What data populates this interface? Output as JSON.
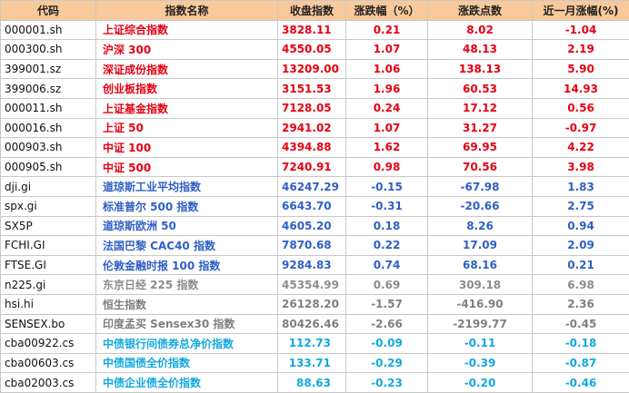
{
  "table": {
    "header": [
      "代码",
      "指数名称",
      "收盘指数",
      "涨跌幅（%）",
      "涨跌点数",
      "近一月涨幅(%)"
    ],
    "rows": [
      [
        "000001.sh",
        "上证综合指数",
        "3828.11",
        "0.21",
        "8.02",
        "-1.04"
      ],
      [
        "000300.sh",
        "沪深 300",
        "4550.05",
        "1.07",
        "48.13",
        "2.19"
      ],
      [
        "399001.sz",
        "深证成份指数",
        "13209.00",
        "1.06",
        "138.13",
        "5.90"
      ],
      [
        "399006.sz",
        "创业板指数",
        "3151.53",
        "1.96",
        "60.53",
        "14.93"
      ],
      [
        "000011.sh",
        "上证基金指数",
        "7128.05",
        "0.24",
        "17.12",
        "0.56"
      ],
      [
        "000016.sh",
        "上证 50",
        "2941.02",
        "1.07",
        "31.27",
        "-0.97"
      ],
      [
        "000903.sh",
        "中证 100",
        "4394.88",
        "1.62",
        "69.95",
        "4.22"
      ],
      [
        "000905.sh",
        "中证 500",
        "7240.91",
        "0.98",
        "70.56",
        "3.98"
      ],
      [
        "dji.gi",
        "道琼斯工业平均指数",
        "46247.29",
        "-0.15",
        "-67.98",
        "1.83"
      ],
      [
        "spx.gi",
        "标准普尔 500 指数",
        "6643.70",
        "-0.31",
        "-20.66",
        "2.75"
      ],
      [
        "SX5P",
        "道琼斯欧洲 50",
        "4605.20",
        "0.18",
        "8.26",
        "0.94"
      ],
      [
        "FCHI.GI",
        "法国巴黎 CAC40 指数",
        "7870.68",
        "0.22",
        "17.09",
        "2.09"
      ],
      [
        "FTSE.GI",
        "伦敦金融时报 100 指数",
        "9284.83",
        "0.74",
        "68.16",
        "0.21"
      ],
      [
        "n225.gi",
        "东京日经 225 指数",
        "45354.99",
        "0.69",
        "309.18",
        "6.98"
      ],
      [
        "hsi.hi",
        "恒生指数",
        "26128.20",
        "-1.57",
        "-416.90",
        "2.36"
      ],
      [
        "SENSEX.bo",
        "印度孟买 Sensex30 指数",
        "80426.46",
        "-2.66",
        "-2199.77",
        "-0.45"
      ],
      [
        "cba00922.cs",
        "中债银行间债券总净价指数",
        "112.73",
        "-0.09",
        "-0.11",
        "-0.18"
      ],
      [
        "cba00603.cs",
        "中债国债全价指数",
        "133.71",
        "-0.29",
        "-0.39",
        "-0.87"
      ],
      [
        "cba02003.cs",
        "中债企业债全价指数",
        "88.63",
        "-0.23",
        "-0.20",
        "-0.46"
      ]
    ],
    "row_colors": [
      "#e60012",
      "#e60012",
      "#e60012",
      "#e60012",
      "#e60012",
      "#e60012",
      "#e60012",
      "#e60012",
      "#2f5fc4",
      "#2f5fc4",
      "#2f5fc4",
      "#2f5fc4",
      "#2f5fc4",
      "#8c8c8c",
      "#7f7f7f",
      "#7f7f7f",
      "#12a8e0",
      "#12a8e0",
      "#12a8e0"
    ]
  }
}
